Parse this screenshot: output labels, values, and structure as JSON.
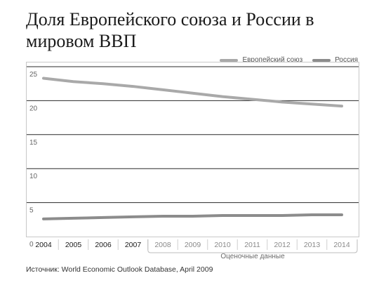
{
  "title": "Доля Европейского союза и России в мировом ВВП",
  "source": "Источник: World Economic Outlook Database, April 2009",
  "estimate_label": "Оценочные данные",
  "colors": {
    "eu": "#a9a9a9",
    "russia": "#8c8c8c",
    "grid": "#2a2a2a",
    "estimate_bracket": "#bdbdbd"
  },
  "chart_data": {
    "type": "line",
    "x": [
      "2004",
      "2005",
      "2006",
      "2007",
      "2008",
      "2009",
      "2010",
      "2011",
      "2012",
      "2013",
      "2014"
    ],
    "series": [
      {
        "name": "Европейский союз",
        "values": [
          23.3,
          22.8,
          22.5,
          22.1,
          21.6,
          21.1,
          20.6,
          20.2,
          19.8,
          19.5,
          19.2
        ]
      },
      {
        "name": "Россия",
        "values": [
          2.6,
          2.7,
          2.8,
          2.9,
          3.0,
          3.0,
          3.1,
          3.1,
          3.1,
          3.2,
          3.2
        ]
      }
    ],
    "ylim": [
      0,
      25
    ],
    "yticks": [
      "0",
      "5",
      "10",
      "15",
      "20",
      "25"
    ],
    "estimated_from": "2008",
    "legend_position": "top-right",
    "grid": true
  }
}
